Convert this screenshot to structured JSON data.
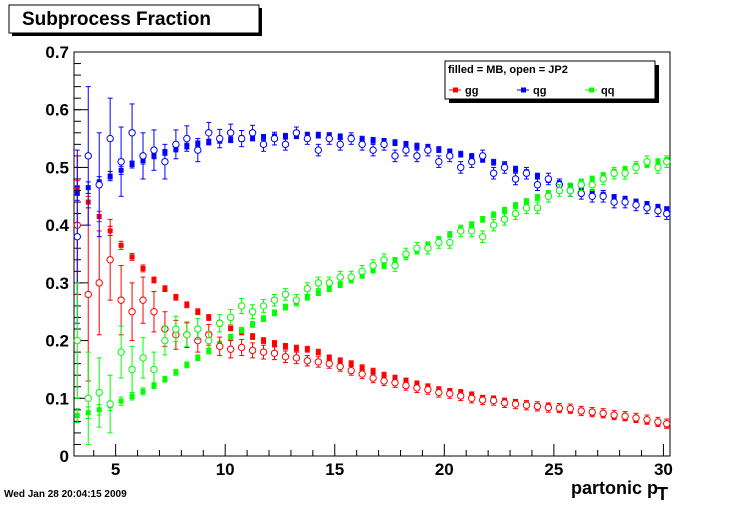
{
  "chart_data": {
    "type": "scatter",
    "title": "Subprocess Fraction",
    "xlabel": "partonic p",
    "xlabel_sub": "T",
    "ylabel": "",
    "xlim": [
      3.1,
      30.3
    ],
    "ylim": [
      0,
      0.7
    ],
    "x_ticks": [
      5,
      10,
      15,
      20,
      25,
      30
    ],
    "y_ticks": [
      0,
      0.1,
      0.2,
      0.3,
      0.4,
      0.5,
      0.6,
      0.7
    ],
    "x_tick_labels": [
      "5",
      "10",
      "15",
      "20",
      "25",
      "30"
    ],
    "y_tick_labels": [
      "0",
      "0.1",
      "0.2",
      "0.3",
      "0.4",
      "0.5",
      "0.6",
      "0.7"
    ],
    "legend": {
      "header": "filled = MB, open = JP2",
      "position": "top-right",
      "entries": [
        "gg",
        "qg",
        "qq"
      ]
    },
    "colors": {
      "gg": "#ff0000",
      "qg": "#0000ff",
      "qq": "#00ff00"
    },
    "series": [
      {
        "name": "gg",
        "sample": "MB",
        "marker": "filled",
        "color": "#ff0000",
        "x": [
          3.25,
          3.75,
          4.25,
          4.75,
          5.25,
          5.75,
          6.25,
          6.75,
          7.25,
          7.75,
          8.25,
          8.75,
          9.25,
          9.75,
          10.25,
          10.75,
          11.25,
          11.75,
          12.25,
          12.75,
          13.25,
          13.75,
          14.25,
          14.75,
          15.25,
          15.75,
          16.25,
          16.75,
          17.25,
          17.75,
          18.25,
          18.75,
          19.25,
          19.75,
          20.25,
          20.75,
          21.25,
          21.75,
          22.25,
          22.75,
          23.25,
          23.75,
          24.25,
          24.75,
          25.25,
          25.75,
          26.25,
          26.75,
          27.25,
          27.75,
          28.25,
          28.75,
          29.25,
          29.75,
          30.15
        ],
        "y": [
          0.465,
          0.44,
          0.415,
          0.39,
          0.365,
          0.345,
          0.325,
          0.305,
          0.29,
          0.275,
          0.262,
          0.25,
          0.24,
          0.23,
          0.222,
          0.215,
          0.207,
          0.2,
          0.195,
          0.19,
          0.187,
          0.185,
          0.18,
          0.17,
          0.165,
          0.16,
          0.153,
          0.147,
          0.14,
          0.135,
          0.13,
          0.125,
          0.12,
          0.115,
          0.112,
          0.11,
          0.106,
          0.1,
          0.098,
          0.095,
          0.092,
          0.089,
          0.086,
          0.085,
          0.082,
          0.08,
          0.078,
          0.075,
          0.073,
          0.07,
          0.067,
          0.064,
          0.061,
          0.058,
          0.055
        ],
        "err": [
          0.012,
          0.01,
          0.009,
          0.008,
          0.007,
          0.006,
          0.006,
          0.005,
          0.005,
          0.005,
          0.005,
          0.005,
          0.005,
          0.005,
          0.005,
          0.005,
          0.005,
          0.005,
          0.005,
          0.005,
          0.005,
          0.005,
          0.005,
          0.005,
          0.005,
          0.005,
          0.005,
          0.005,
          0.005,
          0.005,
          0.005,
          0.005,
          0.005,
          0.005,
          0.005,
          0.005,
          0.005,
          0.005,
          0.005,
          0.005,
          0.005,
          0.005,
          0.005,
          0.005,
          0.005,
          0.005,
          0.005,
          0.005,
          0.005,
          0.005,
          0.005,
          0.005,
          0.005,
          0.005,
          0.005
        ]
      },
      {
        "name": "qg",
        "sample": "MB",
        "marker": "filled",
        "color": "#0000ff",
        "x": [
          3.25,
          3.75,
          4.25,
          4.75,
          5.25,
          5.75,
          6.25,
          6.75,
          7.25,
          7.75,
          8.25,
          8.75,
          9.25,
          9.75,
          10.25,
          10.75,
          11.25,
          11.75,
          12.25,
          12.75,
          13.25,
          13.75,
          14.25,
          14.75,
          15.25,
          15.75,
          16.25,
          16.75,
          17.25,
          17.75,
          18.25,
          18.75,
          19.25,
          19.75,
          20.25,
          20.75,
          21.25,
          21.75,
          22.25,
          22.75,
          23.25,
          23.75,
          24.25,
          24.75,
          25.25,
          25.75,
          26.25,
          26.75,
          27.25,
          27.75,
          28.25,
          28.75,
          29.25,
          29.75,
          30.15
        ],
        "y": [
          0.455,
          0.465,
          0.475,
          0.485,
          0.495,
          0.505,
          0.512,
          0.52,
          0.526,
          0.532,
          0.537,
          0.541,
          0.544,
          0.547,
          0.548,
          0.55,
          0.551,
          0.552,
          0.553,
          0.554,
          0.555,
          0.556,
          0.556,
          0.555,
          0.553,
          0.551,
          0.549,
          0.547,
          0.545,
          0.543,
          0.54,
          0.537,
          0.534,
          0.531,
          0.527,
          0.523,
          0.519,
          0.514,
          0.509,
          0.503,
          0.497,
          0.491,
          0.485,
          0.479,
          0.472,
          0.466,
          0.46,
          0.456,
          0.452,
          0.448,
          0.444,
          0.44,
          0.436,
          0.431,
          0.427
        ],
        "err": [
          0.012,
          0.01,
          0.009,
          0.008,
          0.007,
          0.006,
          0.006,
          0.005,
          0.005,
          0.005,
          0.005,
          0.005,
          0.005,
          0.005,
          0.005,
          0.005,
          0.005,
          0.005,
          0.005,
          0.005,
          0.005,
          0.005,
          0.005,
          0.005,
          0.005,
          0.005,
          0.005,
          0.005,
          0.005,
          0.005,
          0.005,
          0.005,
          0.005,
          0.005,
          0.005,
          0.005,
          0.005,
          0.005,
          0.005,
          0.005,
          0.005,
          0.005,
          0.005,
          0.005,
          0.005,
          0.005,
          0.005,
          0.005,
          0.005,
          0.005,
          0.005,
          0.005,
          0.005,
          0.005,
          0.005
        ]
      },
      {
        "name": "qq",
        "sample": "MB",
        "marker": "filled",
        "color": "#00ff00",
        "x": [
          3.25,
          3.75,
          4.25,
          4.75,
          5.25,
          5.75,
          6.25,
          6.75,
          7.25,
          7.75,
          8.25,
          8.75,
          9.25,
          9.75,
          10.25,
          10.75,
          11.25,
          11.75,
          12.25,
          12.75,
          13.25,
          13.75,
          14.25,
          14.75,
          15.25,
          15.75,
          16.25,
          16.75,
          17.25,
          17.75,
          18.25,
          18.75,
          19.25,
          19.75,
          20.25,
          20.75,
          21.25,
          21.75,
          22.25,
          22.75,
          23.25,
          23.75,
          24.25,
          24.75,
          25.25,
          25.75,
          26.25,
          26.75,
          27.25,
          27.75,
          28.25,
          28.75,
          29.25,
          29.75,
          30.15
        ],
        "y": [
          0.07,
          0.075,
          0.08,
          0.087,
          0.095,
          0.103,
          0.112,
          0.122,
          0.133,
          0.145,
          0.158,
          0.17,
          0.182,
          0.194,
          0.206,
          0.218,
          0.228,
          0.238,
          0.248,
          0.258,
          0.267,
          0.275,
          0.283,
          0.29,
          0.297,
          0.305,
          0.313,
          0.322,
          0.33,
          0.339,
          0.348,
          0.357,
          0.366,
          0.375,
          0.384,
          0.393,
          0.401,
          0.41,
          0.418,
          0.426,
          0.434,
          0.441,
          0.448,
          0.455,
          0.462,
          0.468,
          0.474,
          0.48,
          0.486,
          0.492,
          0.497,
          0.502,
          0.506,
          0.51,
          0.512
        ],
        "err": [
          0.012,
          0.01,
          0.009,
          0.008,
          0.007,
          0.006,
          0.006,
          0.005,
          0.005,
          0.005,
          0.005,
          0.005,
          0.005,
          0.005,
          0.005,
          0.005,
          0.005,
          0.005,
          0.005,
          0.005,
          0.005,
          0.005,
          0.005,
          0.005,
          0.005,
          0.005,
          0.005,
          0.005,
          0.005,
          0.005,
          0.005,
          0.005,
          0.005,
          0.005,
          0.005,
          0.005,
          0.005,
          0.005,
          0.005,
          0.005,
          0.005,
          0.005,
          0.005,
          0.005,
          0.005,
          0.005,
          0.005,
          0.005,
          0.005,
          0.005,
          0.005,
          0.005,
          0.005,
          0.005,
          0.005
        ]
      },
      {
        "name": "gg",
        "sample": "JP2",
        "marker": "open",
        "color": "#ff0000",
        "x": [
          3.25,
          3.75,
          4.25,
          4.75,
          5.25,
          5.75,
          6.25,
          6.75,
          7.25,
          7.75,
          8.25,
          8.75,
          9.25,
          9.75,
          10.25,
          10.75,
          11.25,
          11.75,
          12.25,
          12.75,
          13.25,
          13.75,
          14.25,
          14.75,
          15.25,
          15.75,
          16.25,
          16.75,
          17.25,
          17.75,
          18.25,
          18.75,
          19.25,
          19.75,
          20.25,
          20.75,
          21.25,
          21.75,
          22.25,
          22.75,
          23.25,
          23.75,
          24.25,
          24.75,
          25.25,
          25.75,
          26.25,
          26.75,
          27.25,
          27.75,
          28.25,
          28.75,
          29.25,
          29.75,
          30.15
        ],
        "y": [
          0.4,
          0.28,
          0.3,
          0.34,
          0.27,
          0.25,
          0.27,
          0.25,
          0.22,
          0.21,
          0.21,
          0.2,
          0.21,
          0.19,
          0.185,
          0.188,
          0.183,
          0.18,
          0.178,
          0.172,
          0.17,
          0.165,
          0.163,
          0.16,
          0.155,
          0.148,
          0.142,
          0.135,
          0.13,
          0.127,
          0.122,
          0.118,
          0.115,
          0.11,
          0.108,
          0.104,
          0.1,
          0.097,
          0.096,
          0.092,
          0.09,
          0.088,
          0.086,
          0.084,
          0.083,
          0.082,
          0.078,
          0.076,
          0.074,
          0.071,
          0.069,
          0.066,
          0.063,
          0.059,
          0.056
        ],
        "err": [
          0.12,
          0.15,
          0.09,
          0.07,
          0.06,
          0.05,
          0.04,
          0.035,
          0.03,
          0.025,
          0.022,
          0.02,
          0.018,
          0.016,
          0.015,
          0.014,
          0.013,
          0.012,
          0.011,
          0.01,
          0.01,
          0.009,
          0.009,
          0.008,
          0.008,
          0.008,
          0.008,
          0.008,
          0.008,
          0.008,
          0.008,
          0.008,
          0.008,
          0.008,
          0.008,
          0.008,
          0.008,
          0.008,
          0.008,
          0.008,
          0.008,
          0.008,
          0.008,
          0.008,
          0.008,
          0.008,
          0.008,
          0.008,
          0.008,
          0.008,
          0.008,
          0.008,
          0.008,
          0.008,
          0.008
        ]
      },
      {
        "name": "qg",
        "sample": "JP2",
        "marker": "open",
        "color": "#0000ff",
        "x": [
          3.25,
          3.75,
          4.25,
          4.75,
          5.25,
          5.75,
          6.25,
          6.75,
          7.25,
          7.75,
          8.25,
          8.75,
          9.25,
          9.75,
          10.25,
          10.75,
          11.25,
          11.75,
          12.25,
          12.75,
          13.25,
          13.75,
          14.25,
          14.75,
          15.25,
          15.75,
          16.25,
          16.75,
          17.25,
          17.75,
          18.25,
          18.75,
          19.25,
          19.75,
          20.25,
          20.75,
          21.25,
          21.75,
          22.25,
          22.75,
          23.25,
          23.75,
          24.25,
          24.75,
          25.25,
          25.75,
          26.25,
          26.75,
          27.25,
          27.75,
          28.25,
          28.75,
          29.25,
          29.75,
          30.15
        ],
        "y": [
          0.38,
          0.52,
          0.47,
          0.55,
          0.51,
          0.56,
          0.52,
          0.53,
          0.51,
          0.54,
          0.55,
          0.53,
          0.56,
          0.55,
          0.56,
          0.55,
          0.56,
          0.54,
          0.55,
          0.54,
          0.56,
          0.55,
          0.53,
          0.55,
          0.54,
          0.55,
          0.54,
          0.53,
          0.54,
          0.52,
          0.53,
          0.52,
          0.53,
          0.51,
          0.52,
          0.5,
          0.51,
          0.52,
          0.49,
          0.5,
          0.48,
          0.49,
          0.47,
          0.48,
          0.47,
          0.46,
          0.455,
          0.45,
          0.45,
          0.44,
          0.44,
          0.435,
          0.43,
          0.425,
          0.42
        ],
        "err": [
          0.15,
          0.12,
          0.09,
          0.07,
          0.06,
          0.05,
          0.04,
          0.035,
          0.03,
          0.025,
          0.022,
          0.02,
          0.018,
          0.016,
          0.015,
          0.014,
          0.013,
          0.012,
          0.011,
          0.01,
          0.01,
          0.01,
          0.01,
          0.01,
          0.01,
          0.01,
          0.01,
          0.01,
          0.01,
          0.01,
          0.01,
          0.01,
          0.01,
          0.01,
          0.01,
          0.01,
          0.01,
          0.01,
          0.01,
          0.01,
          0.01,
          0.01,
          0.01,
          0.01,
          0.01,
          0.01,
          0.01,
          0.01,
          0.01,
          0.01,
          0.01,
          0.01,
          0.01,
          0.01,
          0.01
        ]
      },
      {
        "name": "qq",
        "sample": "JP2",
        "marker": "open",
        "color": "#00ff00",
        "x": [
          3.25,
          3.75,
          4.25,
          4.75,
          5.25,
          5.75,
          6.25,
          6.75,
          7.25,
          7.75,
          8.25,
          8.75,
          9.25,
          9.75,
          10.25,
          10.75,
          11.25,
          11.75,
          12.25,
          12.75,
          13.25,
          13.75,
          14.25,
          14.75,
          15.25,
          15.75,
          16.25,
          16.75,
          17.25,
          17.75,
          18.25,
          18.75,
          19.25,
          19.75,
          20.25,
          20.75,
          21.25,
          21.75,
          22.25,
          22.75,
          23.25,
          23.75,
          24.25,
          24.75,
          25.25,
          25.75,
          26.25,
          26.75,
          27.25,
          27.75,
          28.25,
          28.75,
          29.25,
          29.75,
          30.15
        ],
        "y": [
          0.2,
          0.1,
          0.11,
          0.09,
          0.18,
          0.15,
          0.17,
          0.15,
          0.2,
          0.22,
          0.21,
          0.22,
          0.2,
          0.23,
          0.24,
          0.26,
          0.25,
          0.26,
          0.27,
          0.28,
          0.27,
          0.29,
          0.3,
          0.3,
          0.31,
          0.31,
          0.32,
          0.33,
          0.34,
          0.33,
          0.35,
          0.36,
          0.36,
          0.37,
          0.37,
          0.39,
          0.39,
          0.38,
          0.4,
          0.41,
          0.42,
          0.43,
          0.43,
          0.45,
          0.46,
          0.46,
          0.47,
          0.47,
          0.48,
          0.49,
          0.49,
          0.5,
          0.51,
          0.5,
          0.51
        ],
        "err": [
          0.1,
          0.08,
          0.06,
          0.05,
          0.045,
          0.04,
          0.035,
          0.03,
          0.025,
          0.022,
          0.02,
          0.018,
          0.016,
          0.015,
          0.014,
          0.013,
          0.012,
          0.011,
          0.01,
          0.01,
          0.01,
          0.01,
          0.01,
          0.01,
          0.01,
          0.01,
          0.01,
          0.01,
          0.01,
          0.01,
          0.01,
          0.01,
          0.01,
          0.01,
          0.01,
          0.01,
          0.01,
          0.01,
          0.01,
          0.01,
          0.01,
          0.01,
          0.01,
          0.01,
          0.01,
          0.01,
          0.01,
          0.01,
          0.01,
          0.01,
          0.01,
          0.01,
          0.01,
          0.01,
          0.01
        ]
      }
    ]
  },
  "timestamp": "Wed Jan 28 20:04:15 2009"
}
